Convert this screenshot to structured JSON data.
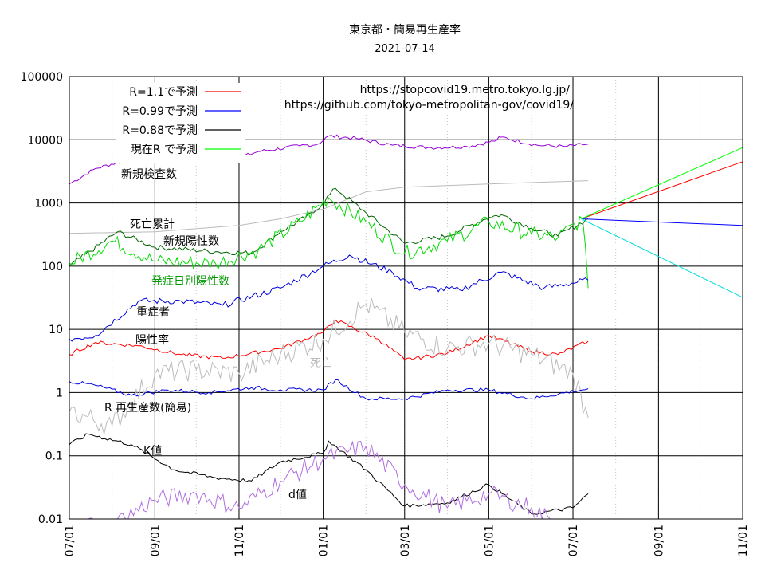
{
  "chart_data": {
    "type": "line",
    "title": "東京都・簡易再生産率",
    "subtitle": "2021-07-14",
    "urls": [
      "https://stopcovid19.metro.tokyo.lg.jp/",
      "https://github.com/tokyo-metropolitan-gov/covid19/"
    ],
    "y_scale": "log",
    "ylim": [
      0.01,
      100000
    ],
    "y_ticks": [
      "100000",
      "10000",
      "1000",
      "100",
      "10",
      "1",
      "0.1",
      "0.01"
    ],
    "x_range": [
      "2020-07-01",
      "2021-11-01"
    ],
    "x_ticks": [
      "07/01",
      "09/01",
      "11/01",
      "01/01",
      "03/01",
      "05/01",
      "07/01",
      "09/01",
      "11/01"
    ],
    "grid": true,
    "legend_position": "top-left",
    "legend": [
      {
        "label": "R=1.1で予測",
        "color": "#ff0000"
      },
      {
        "label": "R=0.99で予測",
        "color": "#0000ff"
      },
      {
        "label": "R=0.88で予測",
        "color": "#000000"
      },
      {
        "label": "現在R で予測",
        "color": "#00ff00"
      }
    ],
    "annotations": [
      {
        "text": "新規検査数",
        "color": "#000000"
      },
      {
        "text": "死亡累計",
        "color": "#000000"
      },
      {
        "text": "新規陽性数",
        "color": "#000000"
      },
      {
        "text": "発症日別陽性数",
        "color": "#009900"
      },
      {
        "text": "重症者",
        "color": "#000000"
      },
      {
        "text": "陽性率",
        "color": "#000000"
      },
      {
        "text": "死亡",
        "color": "#bbbbbb"
      },
      {
        "text": "R 再生産数(簡易)",
        "color": "#000000"
      },
      {
        "text": "K値",
        "color": "#000000"
      },
      {
        "text": "d値",
        "color": "#000000"
      }
    ],
    "series": [
      {
        "name": "新規検査数",
        "color": "#9400d3",
        "x": [
          "2020-07-01",
          "2020-07-20",
          "2020-08-10",
          "2020-09-01",
          "2020-10-01",
          "2020-10-25",
          "2020-11-15",
          "2020-12-15",
          "2020-12-28",
          "2021-01-05",
          "2021-01-25",
          "2021-02-20",
          "2021-03-20",
          "2021-04-15",
          "2021-05-05",
          "2021-05-10",
          "2021-06-05",
          "2021-06-25",
          "2021-07-12"
        ],
        "y": [
          2000,
          3500,
          4700,
          5200,
          4800,
          4600,
          6500,
          8000,
          8500,
          11500,
          10500,
          8200,
          7500,
          7800,
          9500,
          11000,
          8200,
          7800,
          8500
        ]
      },
      {
        "name": "死亡累計",
        "color": "#bbbbbb",
        "x": [
          "2020-07-01",
          "2020-09-01",
          "2020-11-01",
          "2020-12-01",
          "2021-01-01",
          "2021-02-01",
          "2021-03-01",
          "2021-05-01",
          "2021-07-12"
        ],
        "y": [
          330,
          350,
          440,
          560,
          800,
          1500,
          1780,
          2000,
          2250
        ]
      },
      {
        "name": "新規陽性数",
        "color": "#006600",
        "x": [
          "2020-07-01",
          "2020-08-05",
          "2020-09-01",
          "2020-10-15",
          "2020-11-10",
          "2020-12-01",
          "2020-12-25",
          "2021-01-10",
          "2021-02-01",
          "2021-03-01",
          "2021-04-01",
          "2021-05-01",
          "2021-05-10",
          "2021-06-01",
          "2021-06-20",
          "2021-07-12"
        ],
        "y": [
          100,
          350,
          200,
          170,
          160,
          350,
          700,
          1700,
          700,
          230,
          300,
          600,
          650,
          400,
          300,
          560
        ]
      },
      {
        "name": "発症日別陽性数",
        "color": "#00dd00",
        "x": [
          "2020-07-01",
          "2020-08-01",
          "2020-09-01",
          "2020-10-15",
          "2020-11-15",
          "2020-12-15",
          "2021-01-05",
          "2021-02-01",
          "2021-03-01",
          "2021-04-01",
          "2021-05-01",
          "2021-06-01",
          "2021-06-20",
          "2021-07-08",
          "2021-07-12"
        ],
        "y": [
          110,
          250,
          120,
          110,
          180,
          500,
          1200,
          500,
          160,
          250,
          500,
          320,
          280,
          560,
          45
        ]
      },
      {
        "name": "重症者",
        "color": "#0000dd",
        "x": [
          "2020-07-01",
          "2020-07-20",
          "2020-08-20",
          "2020-09-20",
          "2020-10-20",
          "2020-12-01",
          "2021-01-01",
          "2021-01-20",
          "2021-02-20",
          "2021-03-10",
          "2021-04-10",
          "2021-05-10",
          "2021-06-10",
          "2021-07-12"
        ],
        "y": [
          7,
          8,
          28,
          28,
          24,
          45,
          100,
          150,
          80,
          45,
          42,
          80,
          45,
          60
        ]
      },
      {
        "name": "陽性率",
        "color": "#ff0000",
        "x": [
          "2020-07-01",
          "2020-07-20",
          "2020-08-20",
          "2020-09-20",
          "2020-10-20",
          "2020-12-01",
          "2021-01-01",
          "2021-01-10",
          "2021-02-10",
          "2021-03-01",
          "2021-04-01",
          "2021-05-01",
          "2021-06-01",
          "2021-06-20",
          "2021-07-12"
        ],
        "y": [
          4,
          6.2,
          5.5,
          4,
          3.5,
          5,
          9,
          14,
          7,
          3.3,
          4.2,
          8,
          4.5,
          4,
          6.5
        ]
      },
      {
        "name": "死亡",
        "color": "#bbbbbb",
        "x": [
          "2020-07-01",
          "2020-08-01",
          "2020-09-01",
          "2020-10-01",
          "2020-11-01",
          "2020-12-01",
          "2021-01-01",
          "2021-02-01",
          "2021-03-01",
          "2021-04-01",
          "2021-05-01",
          "2021-06-01",
          "2021-07-01",
          "2021-07-12"
        ],
        "y": [
          0.5,
          0.3,
          2,
          2.3,
          2,
          4,
          7,
          25,
          9,
          5,
          6,
          4,
          2,
          0.4
        ]
      },
      {
        "name": "R 再生産数(簡易)",
        "color": "#0000dd",
        "x": [
          "2020-07-01",
          "2020-07-20",
          "2020-08-15",
          "2020-09-10",
          "2020-10-10",
          "2020-11-10",
          "2020-12-01",
          "2021-01-01",
          "2021-01-10",
          "2021-02-01",
          "2021-03-01",
          "2021-04-01",
          "2021-05-01",
          "2021-06-01",
          "2021-07-12"
        ],
        "y": [
          1.5,
          1.3,
          0.9,
          1.1,
          1.0,
          1.2,
          1.1,
          1.1,
          1.6,
          0.8,
          0.8,
          1.1,
          1.1,
          0.8,
          1.15
        ]
      },
      {
        "name": "K値",
        "color": "#000000",
        "x": [
          "2020-07-01",
          "2020-07-15",
          "2020-08-15",
          "2020-09-15",
          "2020-10-15",
          "2020-11-10",
          "2020-12-01",
          "2021-01-01",
          "2021-01-05",
          "2021-02-01",
          "2021-03-01",
          "2021-04-01",
          "2021-05-01",
          "2021-06-01",
          "2021-07-01",
          "2021-07-12"
        ],
        "y": [
          0.15,
          0.22,
          0.15,
          0.06,
          0.045,
          0.04,
          0.08,
          0.11,
          0.17,
          0.06,
          0.016,
          0.018,
          0.035,
          0.012,
          0.015,
          0.025
        ]
      },
      {
        "name": "d値",
        "color": "#b06ee0",
        "x": [
          "2020-07-01",
          "2020-08-01",
          "2020-09-01",
          "2020-10-01",
          "2020-11-01",
          "2020-12-01",
          "2021-01-01",
          "2021-02-01",
          "2021-03-01",
          "2021-04-01",
          "2021-05-01",
          "2021-06-01",
          "2021-06-20"
        ],
        "y": [
          0.008,
          0.008,
          0.02,
          0.025,
          0.015,
          0.04,
          0.09,
          0.14,
          0.035,
          0.015,
          0.025,
          0.015,
          0.008
        ]
      },
      {
        "name": "R=1.1で予測",
        "color": "#ff0000",
        "x": [
          "2021-07-07",
          "2021-11-01"
        ],
        "y": [
          560,
          4500
        ]
      },
      {
        "name": "R=0.99で予測",
        "color": "#0000ff",
        "x": [
          "2021-07-07",
          "2021-11-01"
        ],
        "y": [
          560,
          440
        ]
      },
      {
        "name": "R=0.88で予測",
        "color": "#00dddd",
        "x": [
          "2021-07-07",
          "2021-11-01"
        ],
        "y": [
          560,
          32
        ]
      },
      {
        "name": "現在R で予測",
        "color": "#00ff00",
        "x": [
          "2021-07-07",
          "2021-11-01"
        ],
        "y": [
          560,
          7500
        ]
      }
    ]
  }
}
